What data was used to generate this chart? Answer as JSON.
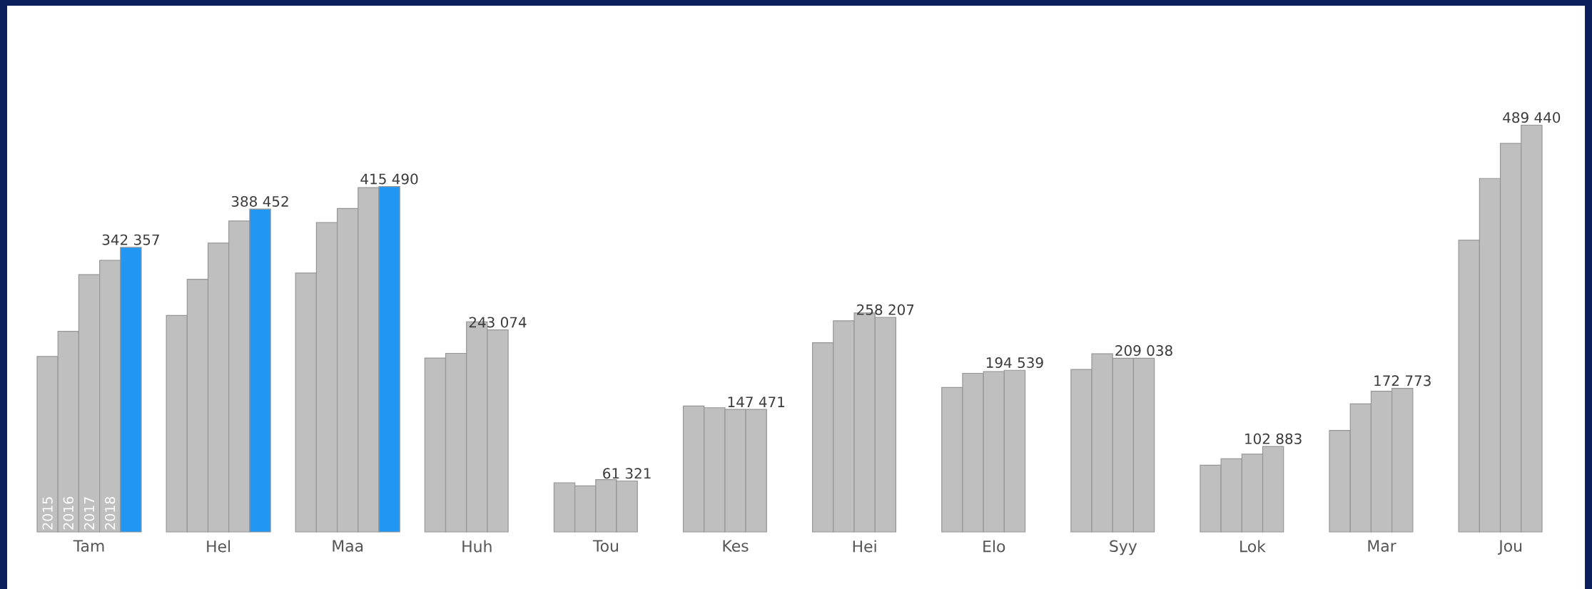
{
  "chart_data": {
    "type": "bar",
    "categories": [
      "Tam",
      "Hel",
      "Maa",
      "Huh",
      "Tou",
      "Kes",
      "Hei",
      "Elo",
      "Syy",
      "Lok",
      "Mar",
      "Jou"
    ],
    "series": [
      {
        "name": "2015",
        "color": "#bfbfbf",
        "values": [
          211100,
          260400,
          311500,
          209200,
          59200,
          151600,
          227600,
          173800,
          195500,
          80400,
          122100,
          351000
        ]
      },
      {
        "name": "2016",
        "color": "#bfbfbf",
        "values": [
          241400,
          304000,
          372200,
          214900,
          55500,
          149500,
          254100,
          190900,
          214400,
          88000,
          154100,
          425300
        ]
      },
      {
        "name": "2017",
        "color": "#bfbfbf",
        "values": [
          309600,
          347500,
          389200,
          252800,
          63000,
          147500,
          263500,
          192900,
          209000,
          93600,
          169300,
          467500
        ]
      },
      {
        "name": "2018",
        "color": "#bfbfbf",
        "values": [
          326700,
          374100,
          414200,
          243074,
          61321,
          147471,
          258207,
          194539,
          209038,
          102883,
          172773,
          489440
        ],
        "value_labels": [
          null,
          null,
          null,
          "243 074",
          "61 321",
          "147 471",
          "258 207",
          "194 539",
          "209 038",
          "102 883",
          "172 773",
          "489 440"
        ]
      },
      {
        "color": "#2196f3",
        "values": [
          342357,
          388452,
          415490,
          null,
          null,
          null,
          null,
          null,
          null,
          null,
          null,
          null
        ],
        "value_labels": [
          "342 357",
          "388 452",
          "415 490",
          null,
          null,
          null,
          null,
          null,
          null,
          null,
          null,
          null
        ]
      }
    ]
  }
}
